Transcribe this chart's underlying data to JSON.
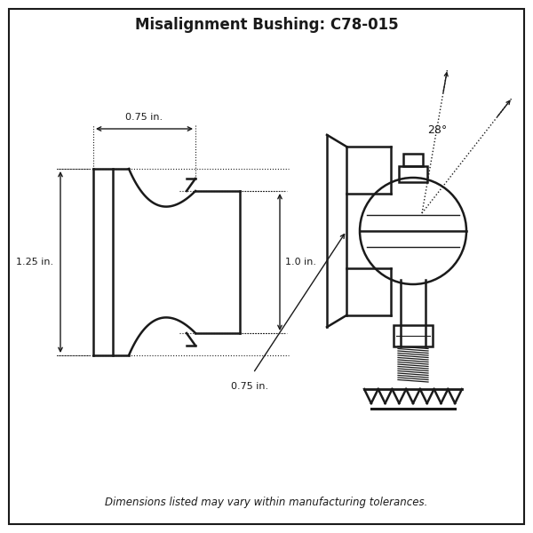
{
  "title": "Misalignment Bushing: C78-015",
  "title_fontsize": 12,
  "title_fontweight": "bold",
  "footer_text": "Dimensions listed may vary within manufacturing tolerances.",
  "footer_fontsize": 8.5,
  "background_color": "#ffffff",
  "line_color": "#1a1a1a",
  "label_0_75_top": "0.75 in.",
  "label_1_0": "1.0 in.",
  "label_1_25": "1.25 in.",
  "label_0_75_bot": "0.75 in.",
  "label_28deg": "28°"
}
